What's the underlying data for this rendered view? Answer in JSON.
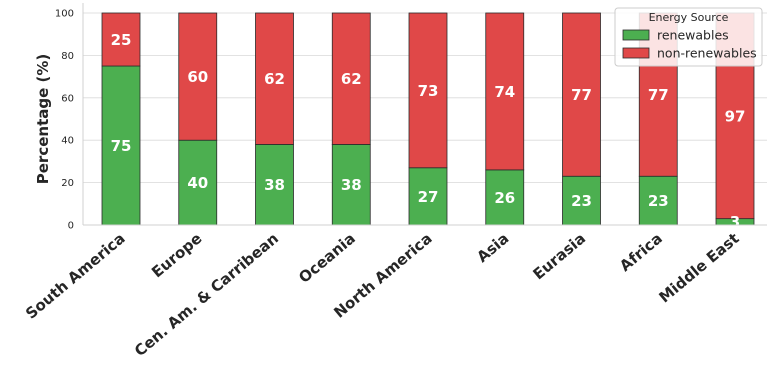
{
  "chart_data": {
    "type": "bar",
    "stacked": true,
    "orientation": "vertical",
    "categories": [
      "South America",
      "Europe",
      "Cen. Am. & Carribean",
      "Oceania",
      "North America",
      "Asia",
      "Eurasia",
      "Africa",
      "Middle East"
    ],
    "series": [
      {
        "name": "renewables",
        "color": "#4caf50",
        "values": [
          75,
          40,
          38,
          38,
          27,
          26,
          23,
          23,
          3
        ]
      },
      {
        "name": "non-renewables",
        "color": "#e04848",
        "values": [
          25,
          60,
          62,
          62,
          73,
          74,
          77,
          77,
          97
        ]
      }
    ],
    "data_labels": [
      [
        "75",
        "40",
        "38",
        "38",
        "27",
        "26",
        "23",
        "23",
        "3"
      ],
      [
        "25",
        "60",
        "62",
        "62",
        "73",
        "74",
        "77",
        "77",
        "97"
      ]
    ],
    "title": "",
    "xlabel": "",
    "ylabel": "Percentage (%)",
    "ylim": [
      0,
      100
    ],
    "yticks": [
      0,
      20,
      40,
      60,
      80,
      100
    ],
    "grid": true,
    "legend": {
      "title": "Energy Source",
      "position": "top-right"
    }
  }
}
